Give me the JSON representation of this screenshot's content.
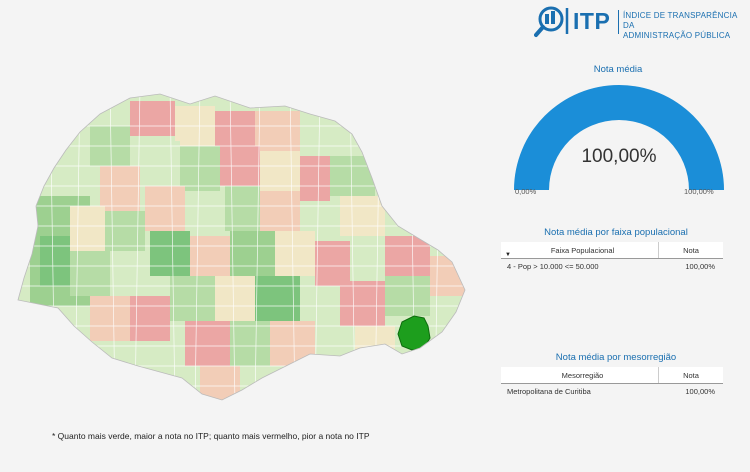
{
  "logo": {
    "title": "ITP",
    "line1": "ÍNDICE DE TRANSPARÊNCIA DA",
    "line2": "ADMINISTRAÇÃO PÚBLICA",
    "icon": "magnifier-building-icon",
    "color": "#1a6fb0"
  },
  "gauge": {
    "title": "Nota média",
    "value_label": "100,00%",
    "value": 1.0,
    "min_label": "0,00%",
    "max_label": "100,00%",
    "fill_color": "#1b8ed8"
  },
  "faixa_table": {
    "title": "Nota média por faixa populacional",
    "col1": "Faixa Populacional",
    "col2": "Nota",
    "rows": [
      {
        "faixa": "4 - Pop > 10.000 <= 50.000",
        "nota": "100,00%"
      }
    ]
  },
  "meso_table": {
    "title": "Nota média por mesorregião",
    "col1": "Mesorregião",
    "col2": "Nota",
    "rows": [
      {
        "meso": "Metropolitana de Curitiba",
        "nota": "100,00%"
      }
    ]
  },
  "map": {
    "colors": {
      "highlight": "#1d9e1d",
      "green_dark": "#7dc47d",
      "green": "#b6dca6",
      "light_green": "#d6ebc4",
      "cream": "#f1e7c6",
      "peach": "#f2cdb7",
      "red": "#eba6a4"
    }
  },
  "footnote": "* Quanto mais verde, maior a nota no ITP; quanto mais vermelho, pior a nota no ITP"
}
